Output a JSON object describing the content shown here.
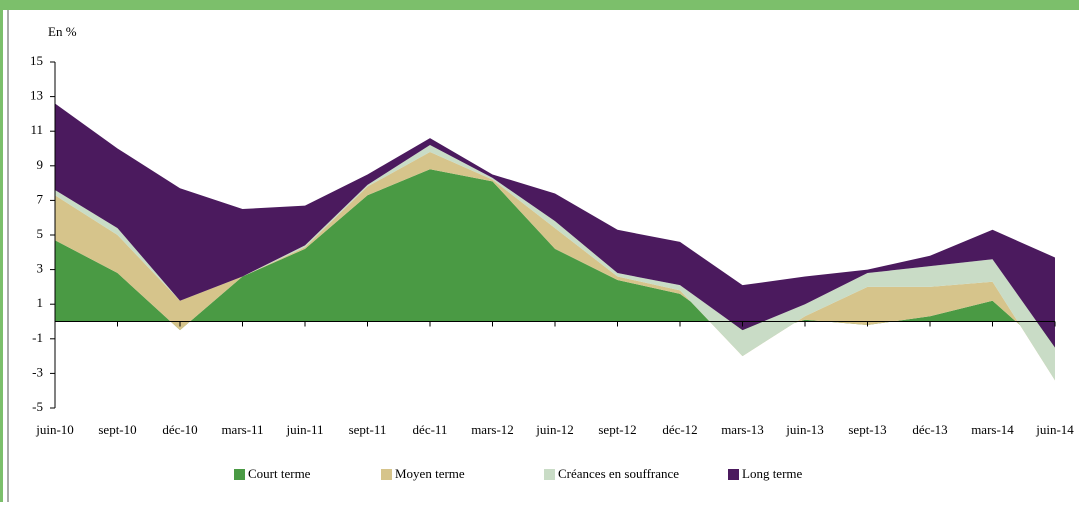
{
  "chart_data": {
    "type": "stacked-area",
    "ylabel": "En %",
    "categories": [
      "juin-10",
      "sept-10",
      "déc-10",
      "mars-11",
      "juin-11",
      "sept-11",
      "déc-11",
      "mars-12",
      "juin-12",
      "sept-12",
      "déc-12",
      "mars-13",
      "juin-13",
      "sept-13",
      "déc-13",
      "mars-14",
      "juin-14"
    ],
    "series": [
      {
        "name": "Court terme",
        "color": "#4a9a44",
        "values": [
          4.7,
          2.8,
          -0.5,
          2.6,
          4.2,
          7.3,
          8.8,
          8.1,
          4.2,
          2.4,
          1.6,
          -1.0,
          0.1,
          -0.2,
          0.3,
          1.2,
          -2.0
        ]
      },
      {
        "name": "Moyen terme",
        "color": "#d6c48b",
        "values": [
          2.6,
          2.2,
          1.7,
          0,
          0.1,
          0.5,
          1.0,
          0.1,
          1.2,
          0.2,
          0.2,
          -1.0,
          0.2,
          2.2,
          1.7,
          1.1,
          -1.4
        ]
      },
      {
        "name": "Créances en souffrance",
        "color": "#c9dcc6",
        "values": [
          0.3,
          0.4,
          0,
          0,
          0.1,
          0.1,
          0.4,
          0.1,
          0.4,
          0.2,
          0.3,
          1.5,
          0.7,
          0.8,
          1.2,
          1.3,
          1.9
        ]
      },
      {
        "name": "Long terme",
        "color": "#4b1a5e",
        "values": [
          5.0,
          4.6,
          6.5,
          3.9,
          2.3,
          0.6,
          0.4,
          0.2,
          1.6,
          2.5,
          2.5,
          2.6,
          1.6,
          0.2,
          0.6,
          1.7,
          5.2
        ]
      }
    ],
    "ylim": [
      -5,
      15
    ],
    "yticks": [
      -5,
      -3,
      -1,
      1,
      3,
      5,
      7,
      9,
      11,
      13,
      15
    ],
    "legend": "bottom"
  }
}
